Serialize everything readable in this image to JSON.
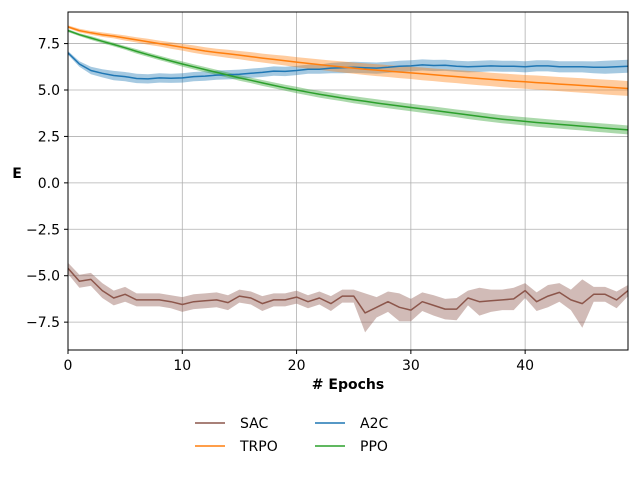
{
  "chart_data": {
    "type": "line",
    "xlabel": "# Epochs",
    "ylabel": "E",
    "xlim": [
      0,
      49
    ],
    "ylim": [
      -9,
      9.2
    ],
    "xticks": [
      0,
      10,
      20,
      30,
      40
    ],
    "xtick_labels": [
      "0",
      "10",
      "20",
      "30",
      "40"
    ],
    "yticks": [
      -7.5,
      -5.0,
      -2.5,
      0.0,
      2.5,
      5.0,
      7.5
    ],
    "ytick_labels": [
      "−7.5",
      "−5.0",
      "−2.5",
      "0.0",
      "2.5",
      "5.0",
      "7.5"
    ],
    "grid": true,
    "legend_position": "bottom",
    "legend_order": [
      "SAC",
      "TRPO",
      "A2C",
      "PPO"
    ],
    "x": [
      0,
      1,
      2,
      3,
      4,
      5,
      6,
      7,
      8,
      9,
      10,
      11,
      12,
      13,
      14,
      15,
      16,
      17,
      18,
      19,
      20,
      21,
      22,
      23,
      24,
      25,
      26,
      27,
      28,
      29,
      30,
      31,
      32,
      33,
      34,
      35,
      36,
      37,
      38,
      39,
      40,
      41,
      42,
      43,
      44,
      45,
      46,
      47,
      48,
      49
    ],
    "series": [
      {
        "name": "A2C",
        "color": "#1f77b4",
        "values": [
          7.0,
          6.4,
          6.05,
          5.9,
          5.78,
          5.72,
          5.62,
          5.6,
          5.65,
          5.63,
          5.65,
          5.72,
          5.75,
          5.8,
          5.82,
          5.85,
          5.9,
          5.95,
          6.02,
          6.0,
          6.05,
          6.12,
          6.12,
          6.18,
          6.2,
          6.22,
          6.2,
          6.18,
          6.22,
          6.28,
          6.3,
          6.35,
          6.32,
          6.33,
          6.28,
          6.25,
          6.27,
          6.3,
          6.28,
          6.28,
          6.25,
          6.3,
          6.3,
          6.25,
          6.25,
          6.25,
          6.22,
          6.22,
          6.25,
          6.28
        ],
        "band": [
          0.1,
          0.15,
          0.2,
          0.22,
          0.25,
          0.25,
          0.25,
          0.25,
          0.25,
          0.25,
          0.25,
          0.25,
          0.25,
          0.25,
          0.25,
          0.25,
          0.25,
          0.25,
          0.25,
          0.25,
          0.25,
          0.25,
          0.25,
          0.28,
          0.3,
          0.3,
          0.3,
          0.3,
          0.3,
          0.3,
          0.3,
          0.3,
          0.3,
          0.3,
          0.3,
          0.3,
          0.3,
          0.3,
          0.3,
          0.3,
          0.3,
          0.3,
          0.3,
          0.3,
          0.3,
          0.3,
          0.32,
          0.35,
          0.35,
          0.35
        ]
      },
      {
        "name": "TRPO",
        "color": "#ff7f0e",
        "values": [
          8.4,
          8.2,
          8.08,
          7.98,
          7.9,
          7.8,
          7.7,
          7.6,
          7.5,
          7.4,
          7.3,
          7.2,
          7.1,
          7.02,
          6.95,
          6.88,
          6.8,
          6.72,
          6.65,
          6.58,
          6.5,
          6.43,
          6.37,
          6.3,
          6.24,
          6.18,
          6.12,
          6.07,
          6.02,
          5.97,
          5.92,
          5.87,
          5.82,
          5.77,
          5.72,
          5.67,
          5.62,
          5.57,
          5.52,
          5.48,
          5.44,
          5.4,
          5.36,
          5.32,
          5.28,
          5.24,
          5.2,
          5.16,
          5.12,
          5.08
        ],
        "band": [
          0.08,
          0.1,
          0.1,
          0.12,
          0.12,
          0.14,
          0.14,
          0.16,
          0.16,
          0.18,
          0.18,
          0.2,
          0.2,
          0.2,
          0.22,
          0.22,
          0.24,
          0.24,
          0.25,
          0.26,
          0.27,
          0.28,
          0.28,
          0.29,
          0.3,
          0.3,
          0.31,
          0.32,
          0.32,
          0.33,
          0.33,
          0.34,
          0.34,
          0.35,
          0.35,
          0.36,
          0.36,
          0.36,
          0.37,
          0.37,
          0.37,
          0.38,
          0.38,
          0.38,
          0.39,
          0.39,
          0.39,
          0.4,
          0.4,
          0.4
        ]
      },
      {
        "name": "PPO",
        "color": "#2ca02c",
        "values": [
          8.2,
          7.98,
          7.8,
          7.62,
          7.45,
          7.27,
          7.08,
          6.9,
          6.73,
          6.56,
          6.4,
          6.25,
          6.1,
          5.95,
          5.8,
          5.65,
          5.52,
          5.38,
          5.25,
          5.12,
          5.0,
          4.88,
          4.77,
          4.67,
          4.57,
          4.48,
          4.39,
          4.3,
          4.22,
          4.14,
          4.06,
          3.98,
          3.9,
          3.82,
          3.74,
          3.66,
          3.58,
          3.5,
          3.43,
          3.37,
          3.31,
          3.25,
          3.2,
          3.15,
          3.1,
          3.05,
          3.0,
          2.95,
          2.9,
          2.85
        ],
        "band": [
          0.08,
          0.08,
          0.1,
          0.1,
          0.1,
          0.1,
          0.12,
          0.12,
          0.12,
          0.12,
          0.14,
          0.14,
          0.14,
          0.14,
          0.14,
          0.15,
          0.15,
          0.16,
          0.16,
          0.16,
          0.17,
          0.17,
          0.18,
          0.18,
          0.18,
          0.19,
          0.19,
          0.2,
          0.2,
          0.2,
          0.2,
          0.2,
          0.21,
          0.21,
          0.21,
          0.22,
          0.22,
          0.22,
          0.22,
          0.22,
          0.22,
          0.23,
          0.23,
          0.23,
          0.23,
          0.23,
          0.24,
          0.24,
          0.24,
          0.24
        ]
      },
      {
        "name": "SAC",
        "color": "#8c564b",
        "values": [
          -4.6,
          -5.3,
          -5.2,
          -5.8,
          -6.2,
          -6.0,
          -6.3,
          -6.3,
          -6.3,
          -6.4,
          -6.55,
          -6.4,
          -6.35,
          -6.3,
          -6.45,
          -6.1,
          -6.2,
          -6.5,
          -6.3,
          -6.3,
          -6.15,
          -6.4,
          -6.2,
          -6.5,
          -6.1,
          -6.1,
          -7.0,
          -6.7,
          -6.4,
          -6.7,
          -6.85,
          -6.4,
          -6.6,
          -6.8,
          -6.8,
          -6.2,
          -6.4,
          -6.35,
          -6.3,
          -6.25,
          -5.8,
          -6.4,
          -6.1,
          -5.9,
          -6.3,
          -6.5,
          -6.0,
          -6.0,
          -6.3,
          -5.8
        ],
        "band": [
          0.3,
          0.35,
          0.35,
          0.4,
          0.4,
          0.4,
          0.35,
          0.35,
          0.35,
          0.35,
          0.4,
          0.4,
          0.4,
          0.4,
          0.4,
          0.35,
          0.35,
          0.4,
          0.35,
          0.35,
          0.35,
          0.35,
          0.35,
          0.4,
          0.35,
          0.35,
          1.05,
          0.55,
          0.55,
          0.75,
          0.6,
          0.5,
          0.55,
          0.55,
          0.6,
          0.4,
          0.75,
          0.6,
          0.55,
          0.6,
          0.4,
          0.5,
          0.6,
          0.5,
          0.55,
          1.3,
          0.4,
          0.4,
          0.45,
          0.3
        ]
      }
    ]
  }
}
